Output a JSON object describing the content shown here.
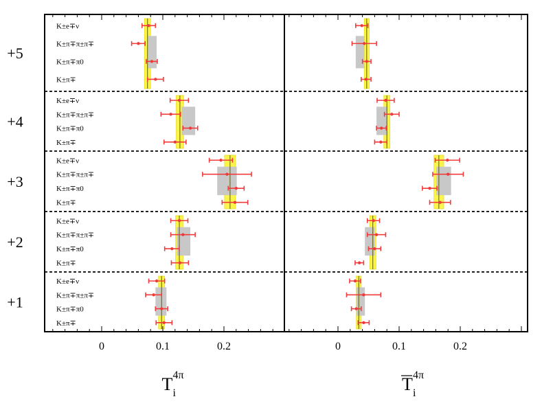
{
  "chart_data": {
    "type": "scatter",
    "description_free": true,
    "rows": [
      {
        "label": "+5",
        "channels": [
          "K±e∓ν",
          "K±π∓π±π∓",
          "K±π∓π0",
          "K±π∓"
        ]
      },
      {
        "label": "+4",
        "channels": [
          "K±e∓ν",
          "K±π∓π±π∓",
          "K±π∓π0",
          "K±π∓"
        ]
      },
      {
        "label": "+3",
        "channels": [
          "K±e∓ν",
          "K±π∓π±π∓",
          "K±π∓π0",
          "K±π∓"
        ]
      },
      {
        "label": "+2",
        "channels": [
          "K±e∓ν",
          "K±π∓π±π∓",
          "K±π∓π0",
          "K±π∓"
        ]
      },
      {
        "label": "+1",
        "channels": [
          "K±e∓ν",
          "K±π∓π±π∓",
          "K±π∓π0",
          "K±π∓"
        ]
      }
    ],
    "xlim": [
      -0.09,
      0.3
    ],
    "xticks": [
      0,
      0.1,
      0.2
    ],
    "xtick_labels": [
      "0",
      "0.1",
      "0.2"
    ],
    "panels": [
      {
        "xlabel": "T",
        "xlabel_sub": "i",
        "xlabel_sup": "4π",
        "overline": false,
        "bins": [
          {
            "avg": 0.075,
            "avg_err": 0.005,
            "gray": 0.083,
            "gray_err": 0.007,
            "points": [
              {
                "v": 0.077,
                "e": 0.011
              },
              {
                "v": 0.06,
                "e": 0.011
              },
              {
                "v": 0.082,
                "e": 0.009
              },
              {
                "v": 0.088,
                "e": 0.013
              }
            ]
          },
          {
            "avg": 0.128,
            "avg_err": 0.006,
            "gray": 0.142,
            "gray_err": 0.011,
            "points": [
              {
                "v": 0.127,
                "e": 0.015
              },
              {
                "v": 0.113,
                "e": 0.016
              },
              {
                "v": 0.145,
                "e": 0.012
              },
              {
                "v": 0.12,
                "e": 0.018
              }
            ]
          },
          {
            "avg": 0.21,
            "avg_err": 0.009,
            "gray": 0.205,
            "gray_err": 0.016,
            "points": [
              {
                "v": 0.195,
                "e": 0.019
              },
              {
                "v": 0.205,
                "e": 0.04
              },
              {
                "v": 0.22,
                "e": 0.013
              },
              {
                "v": 0.218,
                "e": 0.021
              }
            ]
          },
          {
            "avg": 0.127,
            "avg_err": 0.006,
            "gray": 0.134,
            "gray_err": 0.011,
            "points": [
              {
                "v": 0.127,
                "e": 0.014
              },
              {
                "v": 0.133,
                "e": 0.02
              },
              {
                "v": 0.115,
                "e": 0.012
              },
              {
                "v": 0.128,
                "e": 0.014
              }
            ]
          },
          {
            "avg": 0.098,
            "avg_err": 0.005,
            "gray": 0.097,
            "gray_err": 0.009,
            "points": [
              {
                "v": 0.09,
                "e": 0.013
              },
              {
                "v": 0.085,
                "e": 0.013
              },
              {
                "v": 0.098,
                "e": 0.01
              },
              {
                "v": 0.102,
                "e": 0.013
              }
            ]
          }
        ]
      },
      {
        "xlabel": "T",
        "xlabel_sub": "i",
        "xlabel_sup": "4π",
        "overline": true,
        "bins": [
          {
            "avg": 0.047,
            "avg_err": 0.004,
            "gray": 0.036,
            "gray_err": 0.007,
            "points": [
              {
                "v": 0.039,
                "e": 0.01
              },
              {
                "v": 0.043,
                "e": 0.02
              },
              {
                "v": 0.047,
                "e": 0.007
              },
              {
                "v": 0.046,
                "e": 0.008
              }
            ]
          },
          {
            "avg": 0.08,
            "avg_err": 0.005,
            "gray": 0.072,
            "gray_err": 0.009,
            "points": [
              {
                "v": 0.078,
                "e": 0.014
              },
              {
                "v": 0.088,
                "e": 0.012
              },
              {
                "v": 0.071,
                "e": 0.008
              },
              {
                "v": 0.07,
                "e": 0.01
              }
            ]
          },
          {
            "avg": 0.165,
            "avg_err": 0.008,
            "gray": 0.173,
            "gray_err": 0.012,
            "points": [
              {
                "v": 0.179,
                "e": 0.02
              },
              {
                "v": 0.18,
                "e": 0.025
              },
              {
                "v": 0.15,
                "e": 0.012
              },
              {
                "v": 0.167,
                "e": 0.017
              }
            ]
          },
          {
            "avg": 0.057,
            "avg_err": 0.005,
            "gray": 0.052,
            "gray_err": 0.008,
            "points": [
              {
                "v": 0.058,
                "e": 0.01
              },
              {
                "v": 0.063,
                "e": 0.015
              },
              {
                "v": 0.06,
                "e": 0.01
              },
              {
                "v": 0.035,
                "e": 0.007
              }
            ]
          },
          {
            "avg": 0.034,
            "avg_err": 0.004,
            "gray": 0.037,
            "gray_err": 0.007,
            "points": [
              {
                "v": 0.028,
                "e": 0.009
              },
              {
                "v": 0.042,
                "e": 0.028
              },
              {
                "v": 0.03,
                "e": 0.008
              },
              {
                "v": 0.042,
                "e": 0.009
              }
            ]
          }
        ]
      }
    ],
    "colors": {
      "yellow_band": "#fbf44c",
      "yellow_edge": "#e5dc1e",
      "avg_line": "#5a5a00",
      "gray_box": "#c8c8c8",
      "points": "#f13b3b",
      "frame": "#000000"
    }
  }
}
